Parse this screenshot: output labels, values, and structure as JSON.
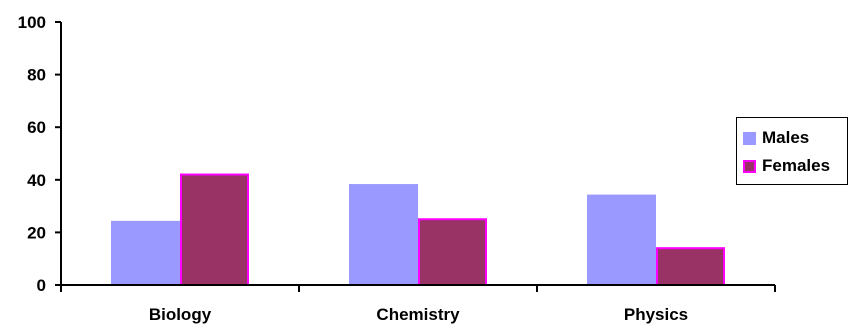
{
  "chart_data": {
    "type": "bar",
    "categories": [
      "Biology",
      "Chemistry",
      "Physics"
    ],
    "series": [
      {
        "name": "Males",
        "values": [
          24,
          38,
          34
        ],
        "color": "#9999FF",
        "border": "#9999FF"
      },
      {
        "name": "Females",
        "values": [
          42,
          25,
          14
        ],
        "color": "#993366",
        "border": "#FF00FF"
      }
    ],
    "ylim": [
      0,
      100
    ],
    "yticks": [
      "0",
      "20",
      "40",
      "60",
      "80",
      "100"
    ],
    "grid": false,
    "legend_position": "right"
  }
}
